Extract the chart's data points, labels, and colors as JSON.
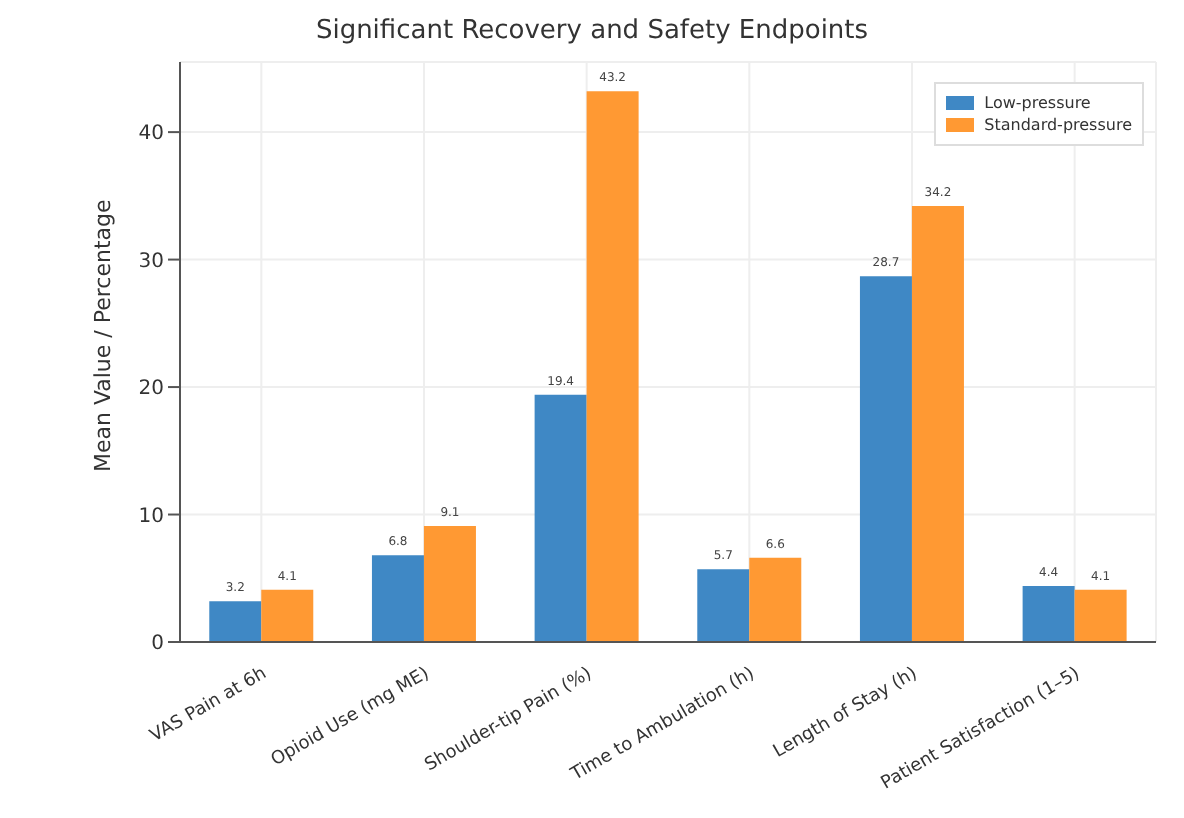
{
  "chart_data": {
    "type": "bar",
    "title": "Significant Recovery and Safety Endpoints",
    "ylabel": "Mean Value / Percentage",
    "categories": [
      "VAS Pain at 6h",
      "Opioid Use (mg ME)",
      "Shoulder-tip Pain (%)",
      "Time to Ambulation (h)",
      "Length of Stay (h)",
      "Patient Satisfaction (1–5)"
    ],
    "series": [
      {
        "name": "Low-pressure",
        "color": "#3f88c5",
        "values": [
          3.2,
          6.8,
          19.4,
          5.7,
          28.7,
          4.4
        ]
      },
      {
        "name": "Standard-pressure",
        "color": "#ff9933",
        "values": [
          4.1,
          9.1,
          43.2,
          6.6,
          34.2,
          4.1
        ]
      }
    ],
    "ylim": [
      0,
      45.5
    ],
    "yticks": [
      0,
      10,
      20,
      30,
      40
    ],
    "grid": true,
    "legend": "top right",
    "data_labels": true
  }
}
